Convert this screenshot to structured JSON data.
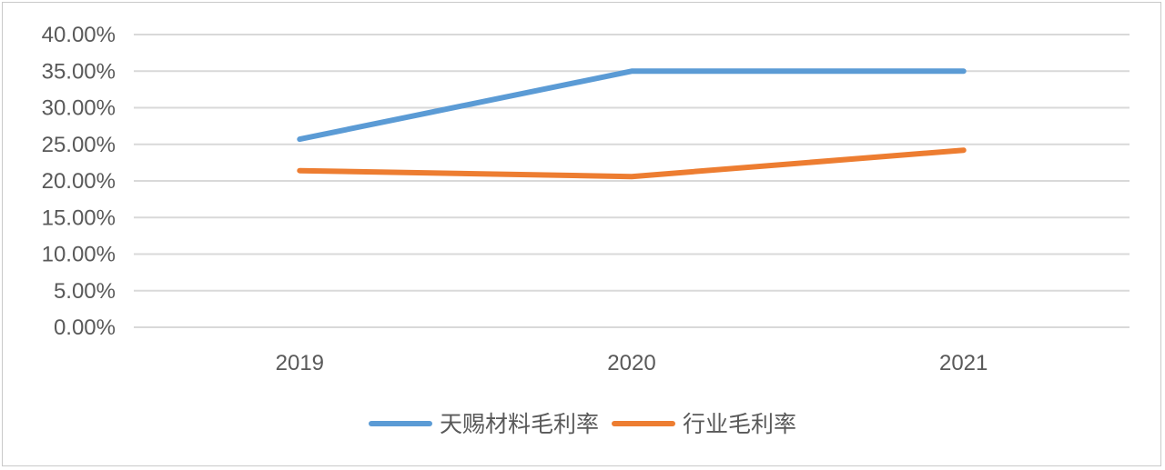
{
  "chart_data": {
    "type": "line",
    "categories": [
      "2019",
      "2020",
      "2021"
    ],
    "y_tick_labels": [
      "0.00%",
      "5.00%",
      "10.00%",
      "15.00%",
      "20.00%",
      "25.00%",
      "30.00%",
      "35.00%",
      "40.00%"
    ],
    "ylim": [
      0,
      40
    ],
    "ytick_step": 5,
    "grid": true,
    "legend_position": "bottom",
    "title": "",
    "xlabel": "",
    "ylabel": "",
    "series": [
      {
        "name": "天赐材料毛利率",
        "color": "#5b9bd5",
        "values": [
          25.7,
          35.0,
          35.0
        ]
      },
      {
        "name": "行业毛利率",
        "color": "#ed7d31",
        "values": [
          21.4,
          20.6,
          24.2
        ]
      }
    ]
  }
}
